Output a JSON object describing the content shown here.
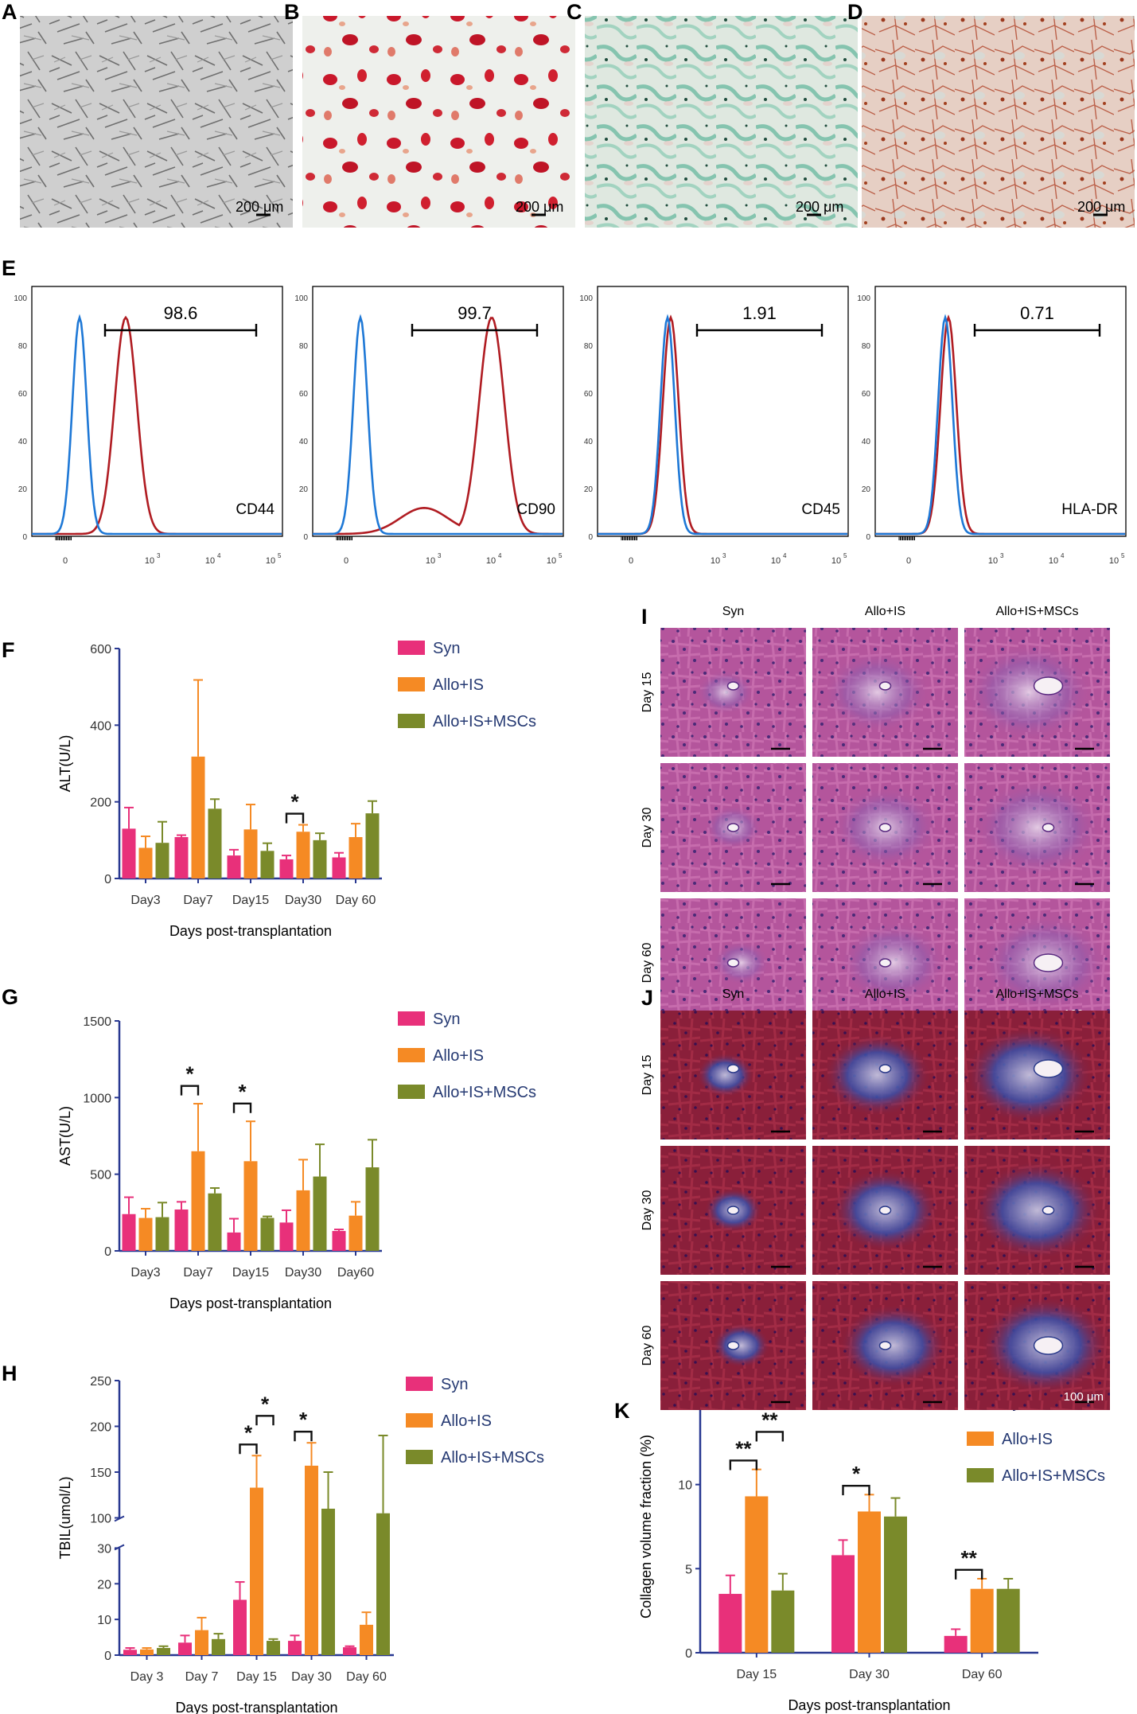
{
  "panels": {
    "micrographs": [
      {
        "label": "A",
        "scale": "200 μm"
      },
      {
        "label": "B",
        "scale": "200 μm"
      },
      {
        "label": "C",
        "scale": "200 μm"
      },
      {
        "label": "D",
        "scale": "200 μm"
      }
    ],
    "flow_label": "E",
    "F": "F",
    "G": "G",
    "H": "H",
    "I": "I",
    "J": "J",
    "K": "K"
  },
  "flow": [
    {
      "marker": "CD44",
      "percent": "98.6"
    },
    {
      "marker": "CD90",
      "percent": "99.7"
    },
    {
      "marker": "CD45",
      "percent": "1.91"
    },
    {
      "marker": "HLA-DR",
      "percent": "0.71"
    }
  ],
  "flow_axis": {
    "y_ticks": [
      "0",
      "20",
      "40",
      "60",
      "80",
      "100"
    ],
    "x_ticks": [
      "0",
      "10",
      "10",
      "10"
    ],
    "x_exps": [
      "3",
      "4",
      "5"
    ]
  },
  "legend": [
    "Syn",
    "Allo+IS",
    "Allo+IS+MSCs"
  ],
  "colors": {
    "syn": "#e8307a",
    "allo": "#f58a24",
    "msc": "#7a8a2a",
    "axis": "#283891",
    "histo_blue": "#1e78d6",
    "histo_red": "#b01c22"
  },
  "histology": {
    "I": {
      "cols": [
        "Syn",
        "Allo+IS",
        "Allo+IS+MSCs"
      ],
      "rows": [
        "Day 15",
        "Day 30",
        "Day 60"
      ],
      "scale": "100 μm"
    },
    "J": {
      "cols": [
        "Syn",
        "Allo+IS",
        "Allo+IS+MSCs"
      ],
      "rows": [
        "Day 15",
        "Day 30",
        "Day 60"
      ],
      "scale": "100 μm"
    }
  },
  "chart_data": [
    {
      "id": "F",
      "type": "bar",
      "ylabel": "ALT(U/L)",
      "xlabel": "Days post-transplantation",
      "categories": [
        "Day3",
        "Day7",
        "Day15",
        "Day30",
        "Day 60"
      ],
      "ylim": [
        0,
        600
      ],
      "yticks": [
        "0",
        "200",
        "400",
        "600"
      ],
      "series": [
        {
          "name": "Syn",
          "values": [
            130,
            108,
            60,
            50,
            55
          ],
          "errors": [
            55,
            5,
            15,
            10,
            12
          ]
        },
        {
          "name": "Allo+IS",
          "values": [
            80,
            318,
            128,
            122,
            108
          ],
          "errors": [
            30,
            200,
            65,
            18,
            35
          ]
        },
        {
          "name": "Allo+IS+MSCs",
          "values": [
            93,
            182,
            72,
            100,
            170
          ],
          "errors": [
            55,
            25,
            20,
            18,
            32
          ]
        }
      ],
      "significance": [
        {
          "category": "Day30",
          "label": "*"
        }
      ]
    },
    {
      "id": "G",
      "type": "bar",
      "ylabel": "AST(U/L)",
      "xlabel": "Days post-transplantation",
      "categories": [
        "Day3",
        "Day7",
        "Day15",
        "Day30",
        "Day60"
      ],
      "ylim": [
        0,
        1500
      ],
      "yticks": [
        "0",
        "500",
        "1000",
        "1500"
      ],
      "series": [
        {
          "name": "Syn",
          "values": [
            240,
            270,
            120,
            185,
            130
          ],
          "errors": [
            110,
            50,
            90,
            80,
            10
          ]
        },
        {
          "name": "Allo+IS",
          "values": [
            215,
            650,
            585,
            395,
            230
          ],
          "errors": [
            60,
            310,
            260,
            200,
            90
          ]
        },
        {
          "name": "Allo+IS+MSCs",
          "values": [
            220,
            375,
            215,
            485,
            545
          ],
          "errors": [
            95,
            35,
            10,
            210,
            180
          ]
        }
      ],
      "significance": [
        {
          "category": "Day7",
          "label": "*"
        },
        {
          "category": "Day15",
          "label": "*"
        }
      ]
    },
    {
      "id": "H",
      "type": "bar",
      "ylabel": "TBIL(umol/L)",
      "xlabel": "Days post-transplantation",
      "categories": [
        "Day 3",
        "Day 7",
        "Day 15",
        "Day 30",
        "Day 60"
      ],
      "ylim": [
        0,
        250
      ],
      "axis_break": [
        30,
        100
      ],
      "yticks_lower": [
        "0",
        "10",
        "20",
        "30"
      ],
      "yticks_upper": [
        "100",
        "150",
        "200",
        "250"
      ],
      "series": [
        {
          "name": "Syn",
          "values": [
            1.5,
            3.5,
            15.5,
            4,
            2.2
          ],
          "errors": [
            0.5,
            2,
            5,
            1.5,
            0.3
          ]
        },
        {
          "name": "Allo+IS",
          "values": [
            1.6,
            7,
            133,
            157,
            8.5
          ],
          "errors": [
            0.4,
            3.5,
            35,
            25,
            3.5
          ]
        },
        {
          "name": "Allo+IS+MSCs",
          "values": [
            2,
            4.5,
            4,
            110,
            105
          ],
          "errors": [
            0.5,
            1.5,
            0.5,
            40,
            85
          ]
        }
      ],
      "significance": [
        {
          "category": "Day 15",
          "label": "*",
          "pair": "Syn-Allo+IS"
        },
        {
          "category": "Day 15",
          "label": "*",
          "pair": "Allo+IS-Allo+IS+MSCs"
        },
        {
          "category": "Day 30",
          "label": "*",
          "pair": "Syn-Allo+IS"
        }
      ]
    },
    {
      "id": "K",
      "type": "bar",
      "ylabel": "Collagen volume fraction (%)",
      "xlabel": "Days post-transplantation",
      "categories": [
        "Day 15",
        "Day 30",
        "Day 60"
      ],
      "ylim": [
        0,
        15
      ],
      "yticks": [
        "0",
        "5",
        "10",
        "15"
      ],
      "series": [
        {
          "name": "Syn",
          "values": [
            3.5,
            5.8,
            1.0
          ],
          "errors": [
            1.1,
            0.9,
            0.4
          ]
        },
        {
          "name": "Allo+IS",
          "values": [
            9.3,
            8.4,
            3.8
          ],
          "errors": [
            1.6,
            1.0,
            0.6
          ]
        },
        {
          "name": "Allo+IS+MSCs",
          "values": [
            3.7,
            8.1,
            3.8
          ],
          "errors": [
            1.0,
            1.1,
            0.6
          ]
        }
      ],
      "significance": [
        {
          "category": "Day 15",
          "label": "**",
          "pair": "Syn-Allo+IS"
        },
        {
          "category": "Day 15",
          "label": "**",
          "pair": "Allo+IS-Allo+IS+MSCs"
        },
        {
          "category": "Day 30",
          "label": "*",
          "pair": "Syn-Allo+IS"
        },
        {
          "category": "Day 60",
          "label": "**",
          "pair": "Syn-Allo+IS"
        }
      ]
    }
  ]
}
